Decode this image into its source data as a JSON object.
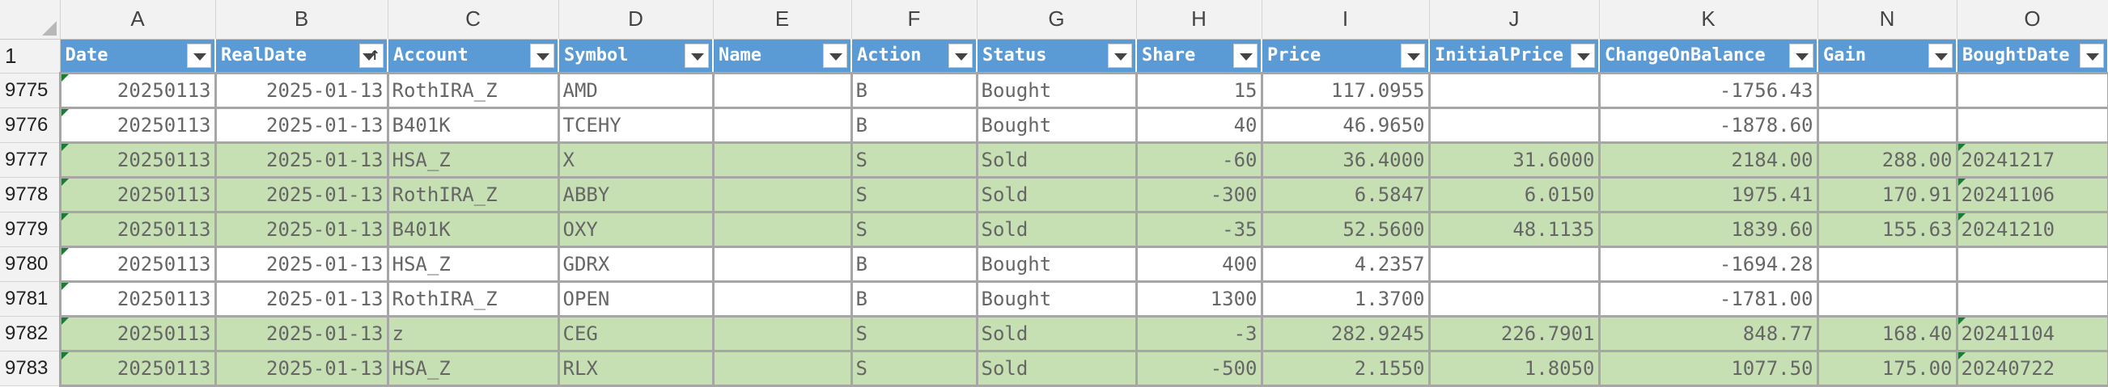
{
  "columns": [
    "A",
    "B",
    "C",
    "D",
    "E",
    "F",
    "G",
    "H",
    "I",
    "J",
    "K",
    "N",
    "O"
  ],
  "header_row_number": "1",
  "headers": [
    "Date",
    "RealDate",
    "Account",
    "Symbol",
    "Name",
    "Action",
    "Status",
    "Share",
    "Price",
    "InitialPrice",
    "ChangeOnBalance",
    "Gain",
    "BoughtDate"
  ],
  "rows": [
    {
      "n": "9775",
      "sold": false,
      "date": "20250113",
      "real": "2025-01-13",
      "acct": "RothIRA_Z",
      "sym": "AMD",
      "name": "",
      "act": "B",
      "status": "Bought",
      "share": "15",
      "price": "117.0955",
      "init": "",
      "chg": "-1756.43",
      "gain": "",
      "bought": ""
    },
    {
      "n": "9776",
      "sold": false,
      "date": "20250113",
      "real": "2025-01-13",
      "acct": "B401K",
      "sym": "TCEHY",
      "name": "",
      "act": "B",
      "status": "Bought",
      "share": "40",
      "price": "46.9650",
      "init": "",
      "chg": "-1878.60",
      "gain": "",
      "bought": ""
    },
    {
      "n": "9777",
      "sold": true,
      "date": "20250113",
      "real": "2025-01-13",
      "acct": "HSA_Z",
      "sym": "X",
      "name": "",
      "act": "S",
      "status": "Sold",
      "share": "-60",
      "price": "36.4000",
      "init": "31.6000",
      "chg": "2184.00",
      "gain": "288.00",
      "bought": "20241217"
    },
    {
      "n": "9778",
      "sold": true,
      "date": "20250113",
      "real": "2025-01-13",
      "acct": "RothIRA_Z",
      "sym": "ABBY",
      "name": "",
      "act": "S",
      "status": "Sold",
      "share": "-300",
      "price": "6.5847",
      "init": "6.0150",
      "chg": "1975.41",
      "gain": "170.91",
      "bought": "20241106"
    },
    {
      "n": "9779",
      "sold": true,
      "date": "20250113",
      "real": "2025-01-13",
      "acct": "B401K",
      "sym": "OXY",
      "name": "",
      "act": "S",
      "status": "Sold",
      "share": "-35",
      "price": "52.5600",
      "init": "48.1135",
      "chg": "1839.60",
      "gain": "155.63",
      "bought": "20241210"
    },
    {
      "n": "9780",
      "sold": false,
      "date": "20250113",
      "real": "2025-01-13",
      "acct": "HSA_Z",
      "sym": "GDRX",
      "name": "",
      "act": "B",
      "status": "Bought",
      "share": "400",
      "price": "4.2357",
      "init": "",
      "chg": "-1694.28",
      "gain": "",
      "bought": ""
    },
    {
      "n": "9781",
      "sold": false,
      "date": "20250113",
      "real": "2025-01-13",
      "acct": "RothIRA_Z",
      "sym": "OPEN",
      "name": "",
      "act": "B",
      "status": "Bought",
      "share": "1300",
      "price": "1.3700",
      "init": "",
      "chg": "-1781.00",
      "gain": "",
      "bought": ""
    },
    {
      "n": "9782",
      "sold": true,
      "date": "20250113",
      "real": "2025-01-13",
      "acct": "z",
      "sym": "CEG",
      "name": "",
      "act": "S",
      "status": "Sold",
      "share": "-3",
      "price": "282.9245",
      "init": "226.7901",
      "chg": "848.77",
      "gain": "168.40",
      "bought": "20241104"
    },
    {
      "n": "9783",
      "sold": true,
      "date": "20250113",
      "real": "2025-01-13",
      "acct": "HSA_Z",
      "sym": "RLX",
      "name": "",
      "act": "S",
      "status": "Sold",
      "share": "-500",
      "price": "2.1550",
      "init": "1.8050",
      "chg": "1077.50",
      "gain": "175.00",
      "bought": "20240722"
    }
  ]
}
